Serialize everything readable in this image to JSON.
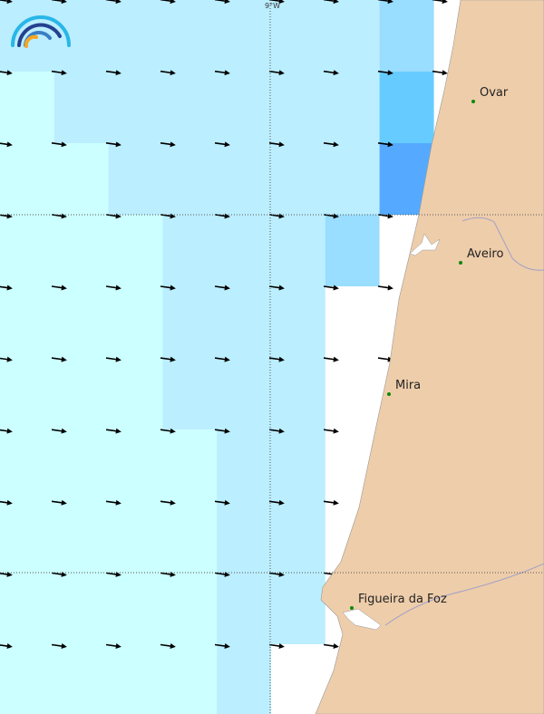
{
  "map": {
    "graticule_label": "9°W",
    "palette": {
      "lightest": "#ccffff",
      "light": "#bbeeff",
      "mid": "#99ddff",
      "strong": "#66ccff",
      "strongest": "#55aaff",
      "land": "#eecdaa",
      "water": "#ffffff"
    },
    "grid_rows": [
      [
        "light",
        "light",
        "light",
        "light",
        "light",
        "light",
        "light",
        "mid"
      ],
      [
        "lightest",
        "light",
        "light",
        "light",
        "light",
        "light",
        "light",
        "strong"
      ],
      [
        "lightest",
        "lightest",
        "light",
        "light",
        "light",
        "light",
        "light",
        "strongest"
      ],
      [
        "lightest",
        "lightest",
        "lightest",
        "light",
        "light",
        "light",
        "mid",
        "water"
      ],
      [
        "lightest",
        "lightest",
        "lightest",
        "light",
        "light",
        "light",
        "water",
        "water"
      ],
      [
        "lightest",
        "lightest",
        "lightest",
        "light",
        "light",
        "light",
        "water",
        "water"
      ],
      [
        "lightest",
        "lightest",
        "lightest",
        "lightest",
        "light",
        "light",
        "water",
        "water"
      ],
      [
        "lightest",
        "lightest",
        "lightest",
        "lightest",
        "light",
        "light",
        "water",
        "water"
      ],
      [
        "lightest",
        "lightest",
        "lightest",
        "lightest",
        "light",
        "light",
        "water",
        "water"
      ],
      [
        "lightest",
        "lightest",
        "lightest",
        "lightest",
        "light",
        "water",
        "water",
        "water"
      ]
    ],
    "arrow_direction": "east-southeast",
    "cities": [
      {
        "name": "Ovar"
      },
      {
        "name": "Aveiro"
      },
      {
        "name": "Mira"
      },
      {
        "name": "Figueira da Foz"
      }
    ],
    "logo_icon": "rainbow-arc-logo"
  }
}
